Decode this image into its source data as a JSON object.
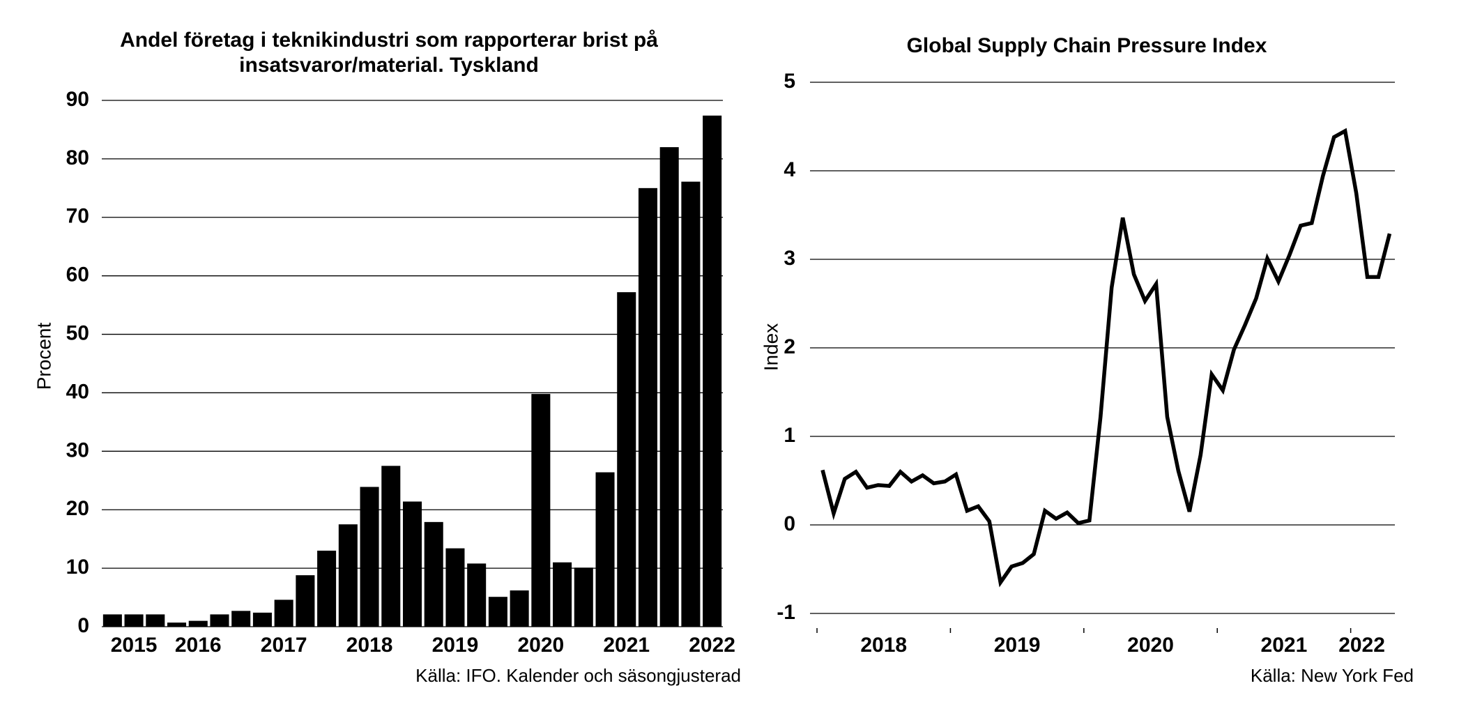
{
  "chart_data": [
    {
      "type": "bar",
      "title": [
        "Andel företag i teknikindustri som rapporterar brist på",
        "insatsvaror/material. Tyskland"
      ],
      "y_label": "Procent",
      "source": "Källa: IFO. Kalender och säsongjusterad",
      "categories": [
        null,
        "2015",
        null,
        null,
        "2016",
        null,
        null,
        null,
        "2017",
        null,
        null,
        null,
        "2018",
        null,
        null,
        null,
        "2019",
        null,
        null,
        null,
        "2020",
        null,
        null,
        null,
        "2021",
        null,
        null,
        null,
        "2022"
      ],
      "values": [
        2.1,
        2.1,
        2.1,
        0.7,
        1.0,
        2.1,
        2.7,
        2.4,
        4.6,
        8.8,
        13,
        17.5,
        23.9,
        27.5,
        21.4,
        17.9,
        13.4,
        10.8,
        5.1,
        6.2,
        39.8,
        11,
        10.1,
        26.4,
        57.2,
        75,
        82,
        76.1,
        87.4
      ],
      "color": "#000000",
      "ylim": [
        0,
        90
      ],
      "yticks": [
        0,
        10,
        20,
        30,
        40,
        50,
        60,
        70,
        80,
        90
      ],
      "grid": true
    },
    {
      "type": "line",
      "title": "Global Supply Chain Pressure Index",
      "y_label": "Index",
      "source": "Källa: New York Fed",
      "categories": [
        null,
        null,
        null,
        null,
        null,
        "2018",
        null,
        null,
        null,
        null,
        null,
        null,
        null,
        null,
        null,
        null,
        null,
        "2019",
        null,
        null,
        null,
        null,
        null,
        null,
        null,
        null,
        null,
        null,
        null,
        "2020",
        null,
        null,
        null,
        null,
        null,
        null,
        null,
        null,
        null,
        null,
        null,
        "2021",
        null,
        null,
        null,
        null,
        null,
        null,
        "2022",
        null,
        null,
        null
      ],
      "values": [
        0.62,
        0.13,
        0.52,
        0.6,
        0.42,
        0.45,
        0.44,
        0.6,
        0.49,
        0.56,
        0.47,
        0.49,
        0.57,
        0.16,
        0.21,
        0.04,
        -0.65,
        -0.47,
        -0.43,
        -0.33,
        0.16,
        0.07,
        0.14,
        0.02,
        0.05,
        1.22,
        2.68,
        3.47,
        2.83,
        2.53,
        2.72,
        1.22,
        0.61,
        0.15,
        0.79,
        1.7,
        1.52,
        1.98,
        2.26,
        2.56,
        3.01,
        2.75,
        3.05,
        3.38,
        3.41,
        3.94,
        4.38,
        4.45,
        3.75,
        2.8,
        2.8,
        3.29
      ],
      "color": "#000000",
      "ylim": [
        -1,
        5
      ],
      "yticks": [
        -1,
        0,
        1,
        2,
        3,
        4,
        5
      ],
      "grid": true
    }
  ]
}
